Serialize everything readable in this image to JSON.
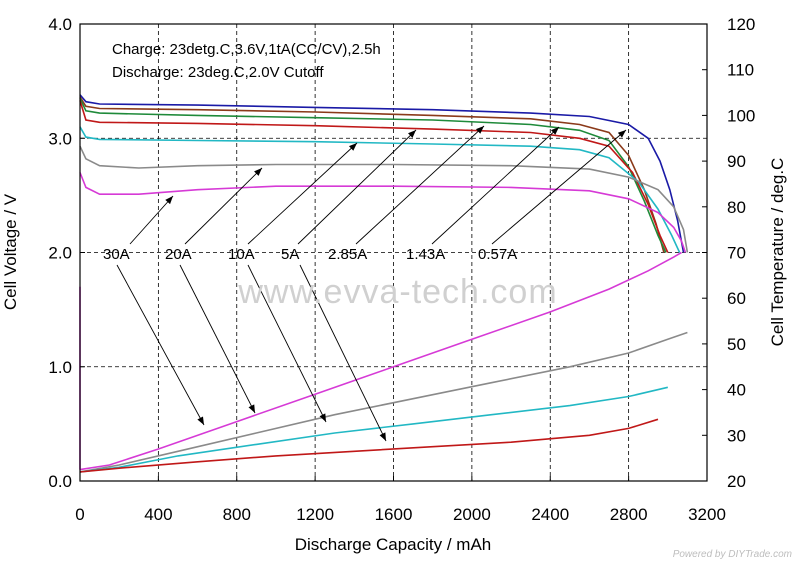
{
  "chart_data": {
    "type": "line",
    "title": "",
    "xlabel": "Discharge Capacity / mAh",
    "ylabel": "Cell Voltage / V",
    "y2label": "Cell Temperature / deg.C",
    "xlim": [
      0,
      3200
    ],
    "ylim": [
      0,
      4
    ],
    "y2lim": [
      20,
      120
    ],
    "xticks": [
      "0",
      "400",
      "800",
      "1200",
      "1600",
      "2000",
      "2400",
      "2800",
      "3200"
    ],
    "yticks": [
      "0.0",
      "1.0",
      "2.0",
      "3.0",
      "4.0"
    ],
    "y2ticks": [
      "20",
      "30",
      "40",
      "50",
      "60",
      "70",
      "80",
      "90",
      "100",
      "110",
      "120"
    ],
    "grid": "dashed",
    "annotations": [
      "Charge: 23detg.C,3.6V,1tA(CC/CV),2.5h",
      "Discharge: 23deg.C,2.0V Cutoff"
    ],
    "rate_labels": [
      "30A",
      "20A",
      "10A",
      "5A",
      "2.85A",
      "1.43A",
      "0.57A"
    ],
    "watermark": "www.evva-tech.com",
    "credit": "Powered by DIYTrade.com",
    "voltage_series": [
      {
        "label": "0.57A",
        "color": "#1a1aa6",
        "points": [
          [
            0,
            3.38
          ],
          [
            30,
            3.32
          ],
          [
            100,
            3.3
          ],
          [
            600,
            3.29
          ],
          [
            1200,
            3.27
          ],
          [
            1800,
            3.25
          ],
          [
            2300,
            3.22
          ],
          [
            2600,
            3.19
          ],
          [
            2800,
            3.12
          ],
          [
            2900,
            3.0
          ],
          [
            2960,
            2.8
          ],
          [
            3010,
            2.55
          ],
          [
            3050,
            2.28
          ],
          [
            3080,
            2.0
          ]
        ]
      },
      {
        "label": "1.43A",
        "color": "#8b3a1a",
        "points": [
          [
            0,
            3.36
          ],
          [
            30,
            3.28
          ],
          [
            100,
            3.26
          ],
          [
            600,
            3.25
          ],
          [
            1200,
            3.23
          ],
          [
            1800,
            3.2
          ],
          [
            2300,
            3.17
          ],
          [
            2550,
            3.12
          ],
          [
            2700,
            3.05
          ],
          [
            2800,
            2.85
          ],
          [
            2880,
            2.55
          ],
          [
            2940,
            2.25
          ],
          [
            2980,
            2.0
          ]
        ]
      },
      {
        "label": "2.85A",
        "color": "#1f8a3a",
        "points": [
          [
            0,
            3.35
          ],
          [
            30,
            3.24
          ],
          [
            100,
            3.22
          ],
          [
            600,
            3.2
          ],
          [
            1200,
            3.18
          ],
          [
            1800,
            3.16
          ],
          [
            2300,
            3.12
          ],
          [
            2550,
            3.07
          ],
          [
            2700,
            2.98
          ],
          [
            2800,
            2.75
          ],
          [
            2880,
            2.45
          ],
          [
            2950,
            2.15
          ],
          [
            2990,
            2.0
          ]
        ]
      },
      {
        "label": "5A",
        "color": "#c01818",
        "points": [
          [
            0,
            3.33
          ],
          [
            30,
            3.16
          ],
          [
            100,
            3.14
          ],
          [
            600,
            3.13
          ],
          [
            1200,
            3.11
          ],
          [
            1800,
            3.08
          ],
          [
            2300,
            3.05
          ],
          [
            2550,
            3.0
          ],
          [
            2700,
            2.93
          ],
          [
            2820,
            2.7
          ],
          [
            2900,
            2.42
          ],
          [
            2960,
            2.15
          ],
          [
            3000,
            2.0
          ]
        ]
      },
      {
        "label": "10A",
        "color": "#22b8c4",
        "points": [
          [
            0,
            3.1
          ],
          [
            30,
            3.01
          ],
          [
            100,
            2.99
          ],
          [
            600,
            2.98
          ],
          [
            1200,
            2.97
          ],
          [
            1800,
            2.95
          ],
          [
            2300,
            2.93
          ],
          [
            2550,
            2.9
          ],
          [
            2700,
            2.83
          ],
          [
            2850,
            2.62
          ],
          [
            2950,
            2.38
          ],
          [
            3020,
            2.15
          ],
          [
            3060,
            2.0
          ]
        ]
      },
      {
        "label": "20A",
        "color": "#8a8a8a",
        "points": [
          [
            0,
            2.93
          ],
          [
            30,
            2.82
          ],
          [
            100,
            2.76
          ],
          [
            300,
            2.74
          ],
          [
            600,
            2.76
          ],
          [
            1000,
            2.77
          ],
          [
            1600,
            2.77
          ],
          [
            2200,
            2.76
          ],
          [
            2600,
            2.73
          ],
          [
            2800,
            2.66
          ],
          [
            2950,
            2.55
          ],
          [
            3030,
            2.4
          ],
          [
            3080,
            2.2
          ],
          [
            3100,
            2.0
          ]
        ]
      },
      {
        "label": "30A",
        "color": "#d63ad6",
        "points": [
          [
            0,
            2.7
          ],
          [
            30,
            2.57
          ],
          [
            100,
            2.51
          ],
          [
            300,
            2.51
          ],
          [
            600,
            2.55
          ],
          [
            1000,
            2.58
          ],
          [
            1600,
            2.58
          ],
          [
            2200,
            2.57
          ],
          [
            2600,
            2.54
          ],
          [
            2800,
            2.47
          ],
          [
            2950,
            2.35
          ],
          [
            3030,
            2.22
          ],
          [
            3070,
            2.1
          ],
          [
            3090,
            2.0
          ]
        ]
      }
    ],
    "temperature_series": [
      {
        "label": "30A",
        "color": "#d63ad6",
        "points": [
          [
            0,
            22.5
          ],
          [
            150,
            23.5
          ],
          [
            400,
            27
          ],
          [
            800,
            33
          ],
          [
            1200,
            39
          ],
          [
            1600,
            45
          ],
          [
            2000,
            51
          ],
          [
            2400,
            57
          ],
          [
            2700,
            62
          ],
          [
            2900,
            66
          ],
          [
            3030,
            69
          ],
          [
            3070,
            70
          ]
        ]
      },
      {
        "label": "20A",
        "color": "#8a8a8a",
        "points": [
          [
            0,
            22
          ],
          [
            200,
            23.5
          ],
          [
            500,
            26.5
          ],
          [
            900,
            30.5
          ],
          [
            1300,
            34.5
          ],
          [
            1700,
            38
          ],
          [
            2100,
            41.5
          ],
          [
            2500,
            45
          ],
          [
            2800,
            48
          ],
          [
            3000,
            51
          ],
          [
            3100,
            52.5
          ]
        ]
      },
      {
        "label": "10A",
        "color": "#22b8c4",
        "points": [
          [
            0,
            22
          ],
          [
            200,
            23
          ],
          [
            500,
            25.5
          ],
          [
            900,
            28
          ],
          [
            1300,
            30.5
          ],
          [
            1700,
            32.5
          ],
          [
            2100,
            34.5
          ],
          [
            2500,
            36.5
          ],
          [
            2800,
            38.5
          ],
          [
            3000,
            40.5
          ]
        ]
      },
      {
        "label": "5A",
        "color": "#c01818",
        "points": [
          [
            0,
            22
          ],
          [
            200,
            22.8
          ],
          [
            600,
            24.2
          ],
          [
            1000,
            25.5
          ],
          [
            1400,
            26.5
          ],
          [
            1800,
            27.5
          ],
          [
            2200,
            28.5
          ],
          [
            2600,
            30
          ],
          [
            2800,
            31.5
          ],
          [
            2950,
            33.5
          ]
        ]
      }
    ]
  }
}
